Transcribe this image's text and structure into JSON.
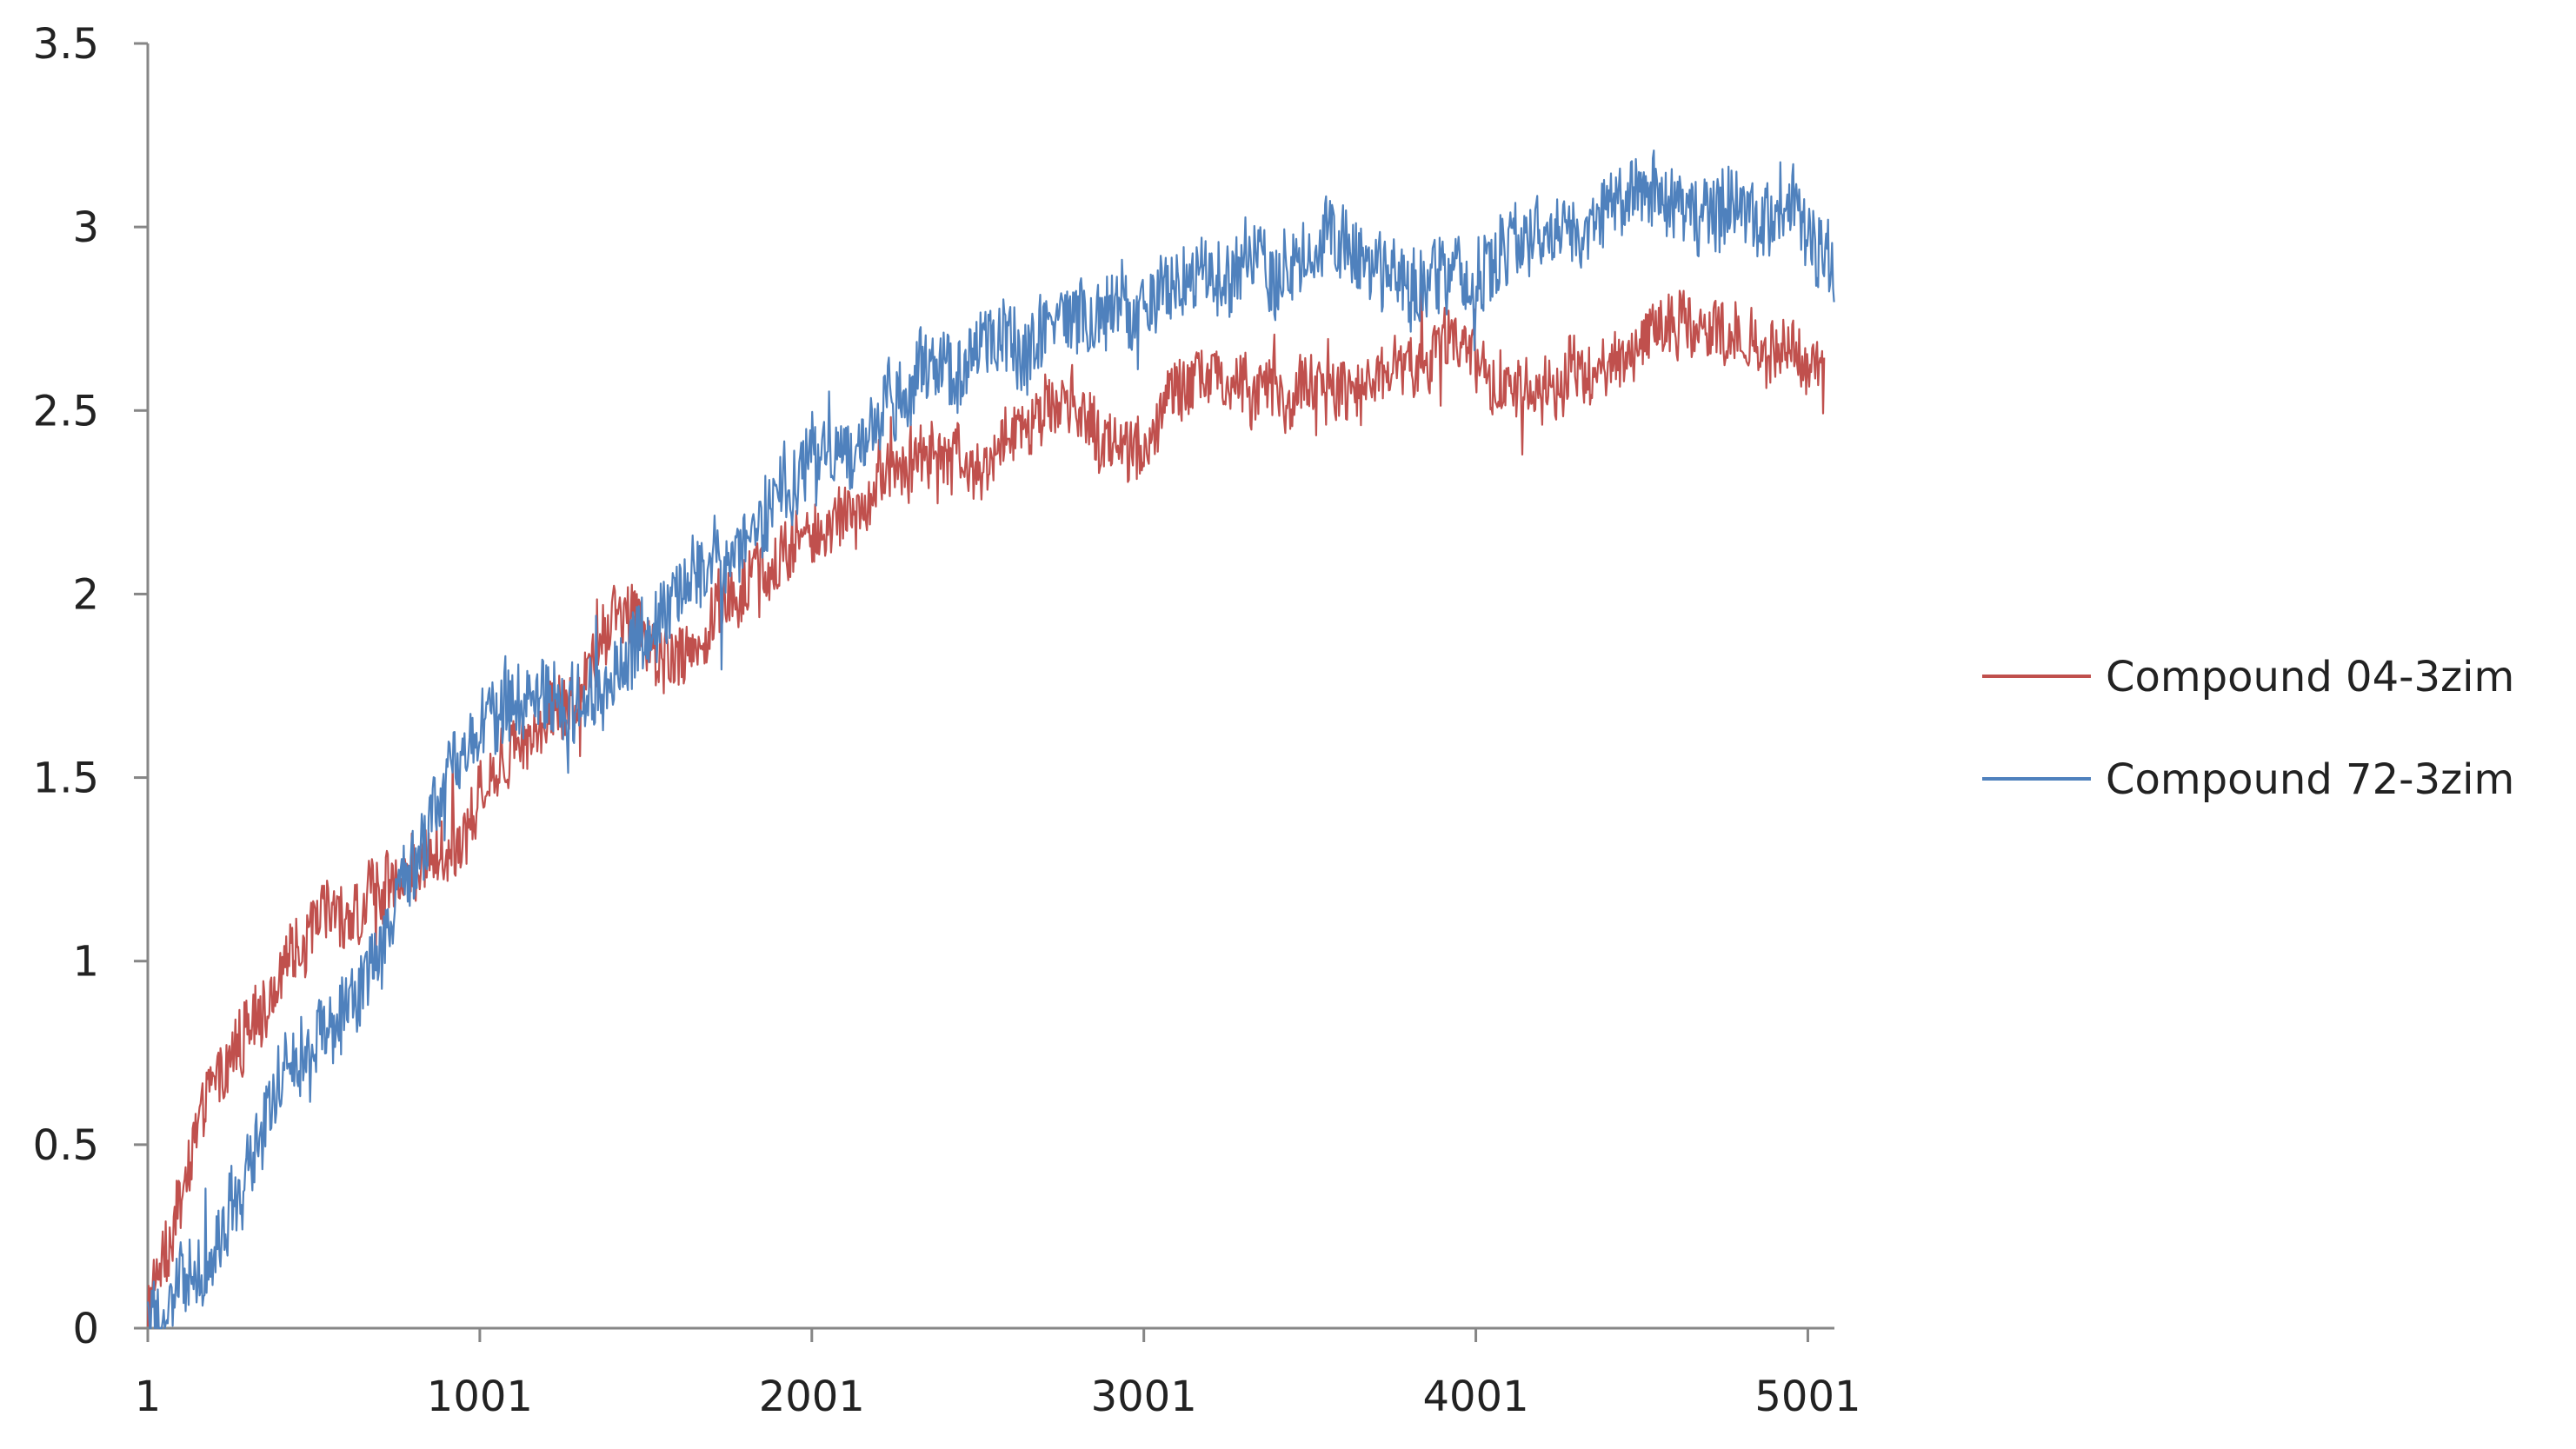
{
  "chart_data": {
    "type": "line",
    "title": "",
    "xlabel": "",
    "ylabel": "",
    "xlim": [
      1,
      5081
    ],
    "ylim": [
      0,
      3.5
    ],
    "x_ticks": [
      "1",
      "1001",
      "2001",
      "3001",
      "4001",
      "5001"
    ],
    "y_ticks": [
      "0",
      "0.5",
      "1",
      "1.5",
      "2",
      "2.5",
      "3",
      "3.5"
    ],
    "grid": false,
    "legend_position": "right",
    "series": [
      {
        "name": "Compound 04-3zim",
        "color": "#C0504D",
        "x": [
          1,
          100,
          200,
          300,
          400,
          500,
          600,
          700,
          800,
          900,
          1000,
          1100,
          1200,
          1300,
          1400,
          1500,
          1600,
          1700,
          1800,
          1900,
          2000,
          2100,
          2200,
          2300,
          2400,
          2500,
          2600,
          2700,
          2800,
          2900,
          3000,
          3100,
          3200,
          3300,
          3400,
          3500,
          3600,
          3700,
          3800,
          3900,
          4000,
          4100,
          4200,
          4300,
          4400,
          4500,
          4600,
          4700,
          4800,
          4900,
          5000,
          5050
        ],
        "y": [
          0.05,
          0.4,
          0.65,
          0.8,
          0.95,
          1.1,
          1.15,
          1.2,
          1.3,
          1.3,
          1.45,
          1.6,
          1.7,
          1.75,
          1.95,
          1.9,
          1.85,
          1.95,
          2.0,
          2.05,
          2.15,
          2.25,
          2.3,
          2.35,
          2.4,
          2.4,
          2.45,
          2.45,
          2.5,
          2.45,
          2.45,
          2.55,
          2.6,
          2.55,
          2.5,
          2.55,
          2.6,
          2.6,
          2.6,
          2.65,
          2.6,
          2.6,
          2.55,
          2.6,
          2.55,
          2.65,
          2.7,
          2.7,
          2.7,
          2.65,
          2.7,
          2.65
        ],
        "noise": 0.11
      },
      {
        "name": "Compound 72-3zim",
        "color": "#4F81BD",
        "x": [
          1,
          100,
          200,
          300,
          400,
          500,
          600,
          700,
          800,
          900,
          1000,
          1100,
          1200,
          1300,
          1400,
          1500,
          1600,
          1700,
          1800,
          1900,
          2000,
          2100,
          2200,
          2300,
          2400,
          2500,
          2600,
          2700,
          2800,
          2900,
          3000,
          3100,
          3200,
          3300,
          3400,
          3500,
          3600,
          3700,
          3800,
          3900,
          4000,
          4100,
          4200,
          4300,
          4400,
          4500,
          4600,
          4700,
          4800,
          4900,
          5000,
          5081
        ],
        "y": [
          0.05,
          0.15,
          0.3,
          0.5,
          0.75,
          0.85,
          0.95,
          1.05,
          1.3,
          1.5,
          1.6,
          1.7,
          1.75,
          1.75,
          1.8,
          1.95,
          2.05,
          2.1,
          2.2,
          2.3,
          2.35,
          2.45,
          2.5,
          2.55,
          2.55,
          2.6,
          2.65,
          2.7,
          2.75,
          2.8,
          2.8,
          2.85,
          2.85,
          2.9,
          2.9,
          2.95,
          2.95,
          2.9,
          2.85,
          2.9,
          2.9,
          2.95,
          2.95,
          3.0,
          3.0,
          3.05,
          3.05,
          3.0,
          3.05,
          3.05,
          3.05,
          2.95
        ],
        "noise": 0.13
      }
    ]
  }
}
